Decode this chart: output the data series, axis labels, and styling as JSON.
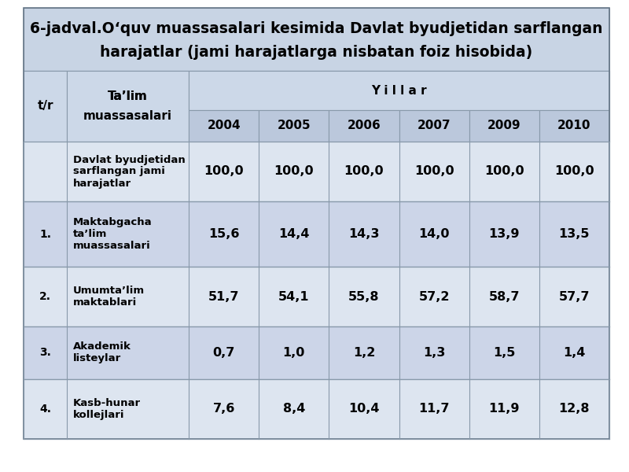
{
  "title_line1": "6-jadval.​O‘quv muassasalari kesimida Davlat byudjetidan sarflangan",
  "title_line2": "harajatlar (jami harajatlarga nisbatan foiz hisobida)",
  "title_bg": "#c8d4e4",
  "header_bg": "#ccd8e8",
  "row_bgs": [
    "#dde5f0",
    "#ccd5e8",
    "#dde5f0",
    "#ccd5e8",
    "#dde5f0"
  ],
  "col_headers": [
    "2004",
    "2005",
    "2006",
    "2007",
    "2009",
    "2010"
  ],
  "col_header_bg": "#bbc8dc",
  "rows": [
    {
      "num": "",
      "name_lines": [
        "Davlat byudjetidan",
        "sarflangan jami",
        "harajatlar"
      ],
      "values": [
        "100,0",
        "100,0",
        "100,0",
        "100,0",
        "100,0",
        "100,0"
      ]
    },
    {
      "num": "1.",
      "name_lines": [
        "Maktabgacha",
        "ta’lim",
        "muassasalari"
      ],
      "values": [
        "15,6",
        "14,4",
        "14,3",
        "14,0",
        "13,9",
        "13,5"
      ]
    },
    {
      "num": "2.",
      "name_lines": [
        "Umumta’lim",
        "maktablari"
      ],
      "values": [
        "51,7",
        "54,1",
        "55,8",
        "57,2",
        "58,7",
        "57,7"
      ]
    },
    {
      "num": "3.",
      "name_lines": [
        "Akademik",
        "listeylar"
      ],
      "values": [
        "0,7",
        "1,0",
        "1,2",
        "1,3",
        "1,5",
        "1,4"
      ]
    },
    {
      "num": "4.",
      "name_lines": [
        "Kasb-hunar",
        "kollejlari"
      ],
      "values": [
        "7,6",
        "8,4",
        "10,4",
        "11,7",
        "11,9",
        "12,8"
      ]
    }
  ],
  "edge_color": "#8899aa",
  "edge_lw": 0.8,
  "title_fontsize": 13.5,
  "header_fontsize": 11,
  "num_fontsize": 10,
  "name_fontsize": 9.5,
  "value_fontsize": 11.5
}
